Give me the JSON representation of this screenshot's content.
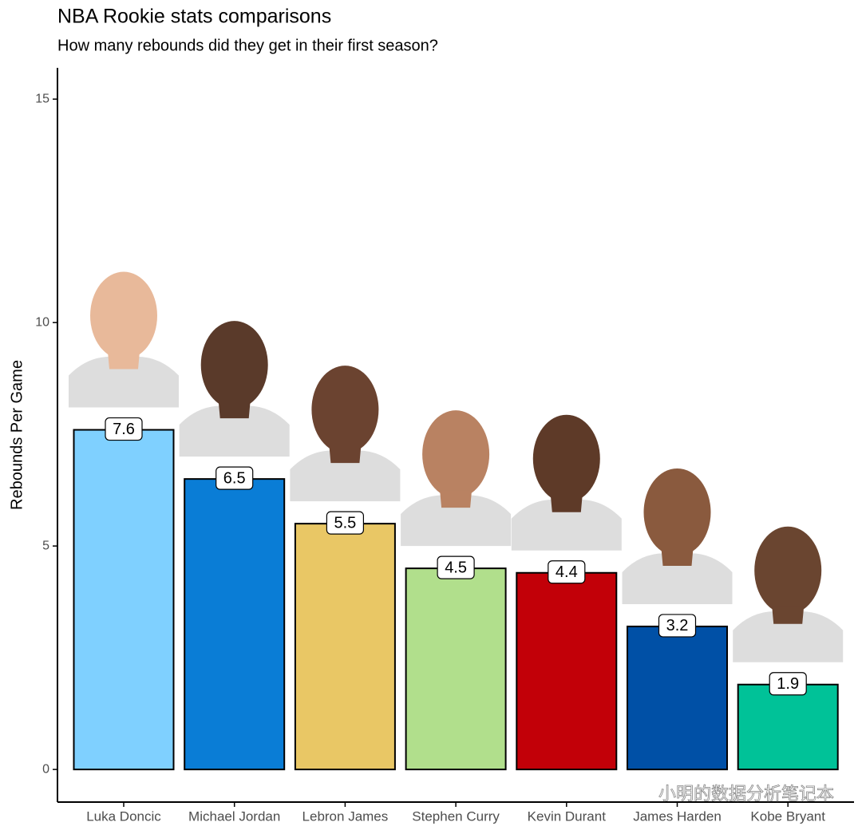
{
  "chart_data": {
    "type": "bar",
    "title": "NBA Rookie stats comparisons",
    "subtitle": "How many rebounds did they get in their first season?",
    "y_label": "Rebounds Per Game",
    "categories": [
      "Luka Doncic",
      "Michael Jordan",
      "Lebron James",
      "Stephen Curry",
      "Kevin Durant",
      "James Harden",
      "Kobe Bryant"
    ],
    "values": [
      7.6,
      6.5,
      5.5,
      4.5,
      4.4,
      3.2,
      1.9
    ],
    "colors": [
      "#7fd0ff",
      "#0a7dd6",
      "#e9c765",
      "#b1df8c",
      "#c20008",
      "#0050a6",
      "#00c298"
    ],
    "ylim": [
      -0.73,
      15.7
    ],
    "yticks": [
      0,
      5,
      10,
      15
    ],
    "grid": false,
    "watermark": "小明的数据分析笔记本"
  }
}
